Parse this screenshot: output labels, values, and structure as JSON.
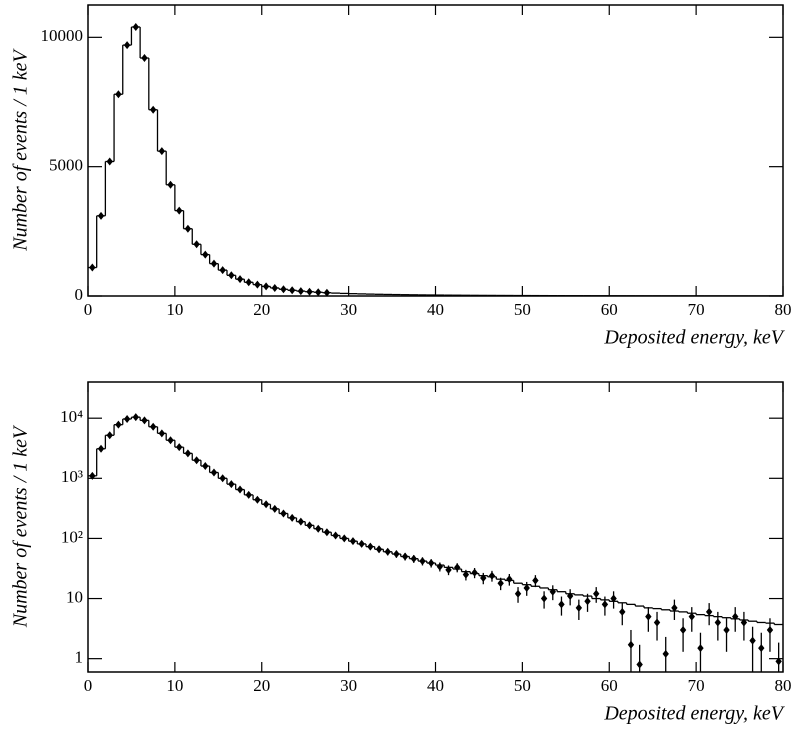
{
  "chart_data": [
    {
      "type": "line",
      "yscale": "linear",
      "ylabel": "Number of events / 1 keV",
      "xlabel": "Deposited energy, keV",
      "xlim": [
        0,
        80
      ],
      "xticks": [
        0,
        10,
        20,
        30,
        40,
        50,
        60,
        70,
        80
      ],
      "ylim": [
        0,
        11250
      ],
      "yticks": [
        0,
        5000,
        10000
      ],
      "x": [
        0.5,
        1.5,
        2.5,
        3.5,
        4.5,
        5.5,
        6.5,
        7.5,
        8.5,
        9.5,
        10.5,
        11.5,
        12.5,
        13.5,
        14.5,
        15.5,
        16.5,
        17.5,
        18.5,
        19.5,
        20.5,
        21.5,
        22.5,
        23.5,
        24.5,
        25.5,
        26.5,
        27.5,
        28.5,
        29.5,
        30.5,
        31.5,
        32.5,
        33.5,
        34.5,
        35.5,
        36.5,
        37.5,
        38.5,
        39.5,
        40.5,
        41.5,
        42.5,
        43.5,
        44.5,
        45.5,
        46.5,
        47.5,
        48.5,
        49.5,
        50.5,
        51.5,
        52.5,
        53.5,
        54.5,
        55.5,
        56.5,
        57.5,
        58.5,
        59.5,
        60.5,
        61.5,
        62.5,
        63.5,
        64.5,
        65.5,
        66.5,
        67.5,
        68.5,
        69.5,
        70.5,
        71.5,
        72.5,
        73.5,
        74.5,
        75.5,
        76.5,
        77.5,
        78.5,
        79.5
      ],
      "series": [
        {
          "color": "#000000",
          "drawstyle": "steps-mid",
          "values": [
            1100,
            3100,
            5200,
            7800,
            9700,
            10400,
            9200,
            7200,
            5600,
            4300,
            3300,
            2600,
            2000,
            1600,
            1250,
            1000,
            800,
            650,
            530,
            440,
            370,
            310,
            260,
            220,
            190,
            165,
            145,
            127,
            112,
            100,
            90,
            81,
            73,
            66,
            60,
            55,
            50,
            46,
            42,
            39,
            36,
            33,
            31,
            28,
            26,
            24,
            23,
            21,
            20,
            18,
            17,
            16,
            15,
            14,
            13,
            12,
            11.5,
            11,
            10,
            9.5,
            9,
            8.5,
            8,
            7.5,
            7,
            6.8,
            6.5,
            6.2,
            6,
            5.7,
            5.4,
            5.2,
            5,
            4.8,
            4.6,
            4.4,
            4.2,
            4,
            3.9,
            3.7
          ]
        },
        {
          "color": "#000000",
          "marker": "diamond",
          "values": [
            1100,
            3100,
            5200,
            7800,
            9700,
            10400,
            9200,
            7200,
            5600,
            4300,
            3300,
            2600,
            2000,
            1600,
            1250,
            1000,
            800,
            650,
            530,
            440,
            370,
            310,
            260,
            220,
            190,
            165,
            145,
            127,
            null,
            null,
            null,
            null,
            null,
            null,
            null,
            null,
            null,
            null,
            null,
            null,
            null,
            null,
            null,
            null,
            null,
            null,
            null,
            null,
            null,
            null,
            null,
            null,
            null,
            null,
            null,
            null,
            null,
            null,
            null,
            null,
            null,
            null,
            null,
            null,
            null,
            null,
            null,
            null,
            null,
            null,
            null,
            null,
            null,
            null,
            null,
            null,
            null,
            null,
            null,
            null
          ]
        }
      ]
    },
    {
      "type": "line",
      "yscale": "log",
      "ylabel": "Number of events / 1 keV",
      "xlabel": "Deposited energy, keV",
      "xlim": [
        0,
        80
      ],
      "xticks": [
        0,
        10,
        20,
        30,
        40,
        50,
        60,
        70,
        80
      ],
      "ylim": [
        0.6,
        40000
      ],
      "yticks": [
        1,
        10,
        {
          "value": 100,
          "label": "10²"
        },
        {
          "value": 1000,
          "label": "10³"
        },
        {
          "value": 10000,
          "label": "10⁴"
        }
      ],
      "x": [
        0.5,
        1.5,
        2.5,
        3.5,
        4.5,
        5.5,
        6.5,
        7.5,
        8.5,
        9.5,
        10.5,
        11.5,
        12.5,
        13.5,
        14.5,
        15.5,
        16.5,
        17.5,
        18.5,
        19.5,
        20.5,
        21.5,
        22.5,
        23.5,
        24.5,
        25.5,
        26.5,
        27.5,
        28.5,
        29.5,
        30.5,
        31.5,
        32.5,
        33.5,
        34.5,
        35.5,
        36.5,
        37.5,
        38.5,
        39.5,
        40.5,
        41.5,
        42.5,
        43.5,
        44.5,
        45.5,
        46.5,
        47.5,
        48.5,
        49.5,
        50.5,
        51.5,
        52.5,
        53.5,
        54.5,
        55.5,
        56.5,
        57.5,
        58.5,
        59.5,
        60.5,
        61.5,
        62.5,
        63.5,
        64.5,
        65.5,
        66.5,
        67.5,
        68.5,
        69.5,
        70.5,
        71.5,
        72.5,
        73.5,
        74.5,
        75.5,
        76.5,
        77.5,
        78.5,
        79.5
      ],
      "series": [
        {
          "color": "#000000",
          "drawstyle": "steps-mid",
          "values": [
            1100,
            3100,
            5200,
            7800,
            9700,
            10400,
            9200,
            7200,
            5600,
            4300,
            3300,
            2600,
            2000,
            1600,
            1250,
            1000,
            800,
            650,
            530,
            440,
            370,
            310,
            260,
            220,
            190,
            165,
            145,
            127,
            112,
            100,
            90,
            81,
            73,
            66,
            60,
            55,
            50,
            46,
            42,
            39,
            36,
            33,
            31,
            28,
            26,
            24,
            23,
            21,
            20,
            18,
            17,
            16,
            15,
            14,
            13,
            12,
            11.5,
            11,
            10,
            9.5,
            9,
            8.5,
            8,
            7.5,
            7,
            6.8,
            6.5,
            6.2,
            6,
            5.7,
            5.4,
            5.2,
            5,
            4.8,
            4.6,
            4.4,
            4.2,
            4,
            3.9,
            3.7
          ]
        },
        {
          "color": "#000000",
          "marker": "diamond",
          "values": [
            1100,
            3100,
            5200,
            7800,
            9700,
            10400,
            9200,
            7200,
            5600,
            4300,
            3300,
            2600,
            2000,
            1600,
            1250,
            1000,
            800,
            650,
            530,
            440,
            370,
            310,
            260,
            220,
            190,
            165,
            145,
            127,
            112,
            100,
            90,
            81,
            73,
            66,
            60,
            55,
            50,
            46,
            42,
            39,
            34,
            30,
            33,
            25,
            27,
            22,
            24,
            18,
            21,
            12,
            15,
            20,
            10,
            13,
            8,
            11,
            7,
            9,
            12,
            8,
            10,
            6,
            1.7,
            0.8,
            5,
            4,
            1.2,
            7,
            3,
            5,
            1.5,
            6,
            4,
            3,
            5,
            4,
            2,
            1.5,
            3,
            0.9
          ],
          "errors": [
            33,
            56,
            72,
            88,
            98,
            102,
            96,
            85,
            75,
            66,
            57,
            51,
            45,
            40,
            35,
            32,
            28,
            25,
            23,
            21,
            19,
            18,
            16,
            15,
            14,
            13,
            12,
            11,
            11,
            10,
            9.5,
            9,
            8.5,
            8.1,
            7.7,
            7.4,
            7.1,
            6.8,
            6.5,
            6.2,
            5.8,
            5.5,
            5.7,
            5,
            5.2,
            4.7,
            4.9,
            4.2,
            4.6,
            3.5,
            3.9,
            4.5,
            3.2,
            3.6,
            2.8,
            3.3,
            2.6,
            3,
            3.5,
            2.8,
            3.2,
            2.4,
            1.3,
            0.9,
            2.2,
            2,
            1.1,
            2.6,
            1.7,
            2.2,
            1.2,
            2.4,
            2,
            1.7,
            2.2,
            2,
            1.4,
            1.2,
            1.7,
            0.95
          ]
        }
      ]
    }
  ]
}
